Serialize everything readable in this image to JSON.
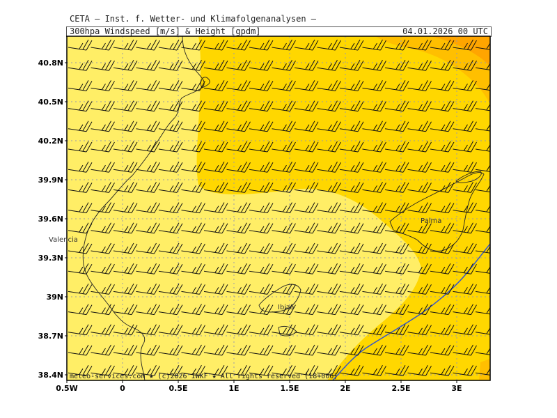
{
  "header": {
    "org": "CETA — Inst. f. Wetter- und Klimafolgenanalysen —",
    "variable": "300hpa Windspeed [m/s] & Height [gpdm]",
    "date": "04.01.2026 00 UTC"
  },
  "colors": {
    "light_yellow": "#ffee66",
    "yellow": "#ffd700",
    "dark_yellow": "#ffbf00",
    "orange": "#ffa500",
    "coast": "#222222",
    "contour": "#3355cc",
    "grid": "#9999aa",
    "barb": "#111111"
  },
  "map": {
    "lon_ticks": [
      "0.5W",
      "0",
      "0.5E",
      "1E",
      "1.5E",
      "2E",
      "2.5E",
      "3E"
    ],
    "lat_ticks": [
      "40.8N",
      "40.5N",
      "40.2N",
      "39.9N",
      "39.6N",
      "39.3N",
      "39N",
      "38.7N",
      "38.4N"
    ],
    "cities": [
      {
        "name": "Valencia"
      },
      {
        "name": "Palma"
      },
      {
        "name": "Ibiza"
      }
    ],
    "copyright": "meteo-services.com ★ (c)2026 IWKF ★ All rights reserved (18+006)"
  }
}
